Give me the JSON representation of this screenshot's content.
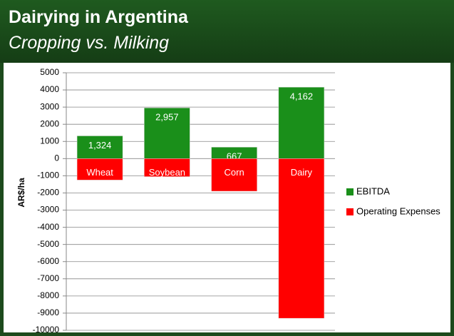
{
  "chart_data": {
    "type": "bar",
    "title": "Dairying in Argentina",
    "subtitle": "Cropping vs. Milking",
    "categories": [
      "Wheat",
      "Soybean",
      "Corn",
      "Dairy"
    ],
    "series": [
      {
        "name": "EBITDA",
        "color": "#1a8f1a",
        "values": [
          1324,
          2957,
          667,
          4162
        ],
        "value_labels": [
          "1,324",
          "2,957",
          "667",
          "4,162"
        ]
      },
      {
        "name": "Operating Expenses",
        "color": "#ff0000",
        "values": [
          -1250,
          -1050,
          -1900,
          -9300
        ]
      }
    ],
    "y_label": "AR$/ha",
    "ylim": [
      -10000,
      5000
    ],
    "yticks": [
      5000,
      4000,
      3000,
      2000,
      1000,
      0,
      -1000,
      -2000,
      -3000,
      -4000,
      -5000,
      -6000,
      -7000,
      -8000,
      -9000,
      -10000
    ],
    "grid": true,
    "legend": "right"
  }
}
